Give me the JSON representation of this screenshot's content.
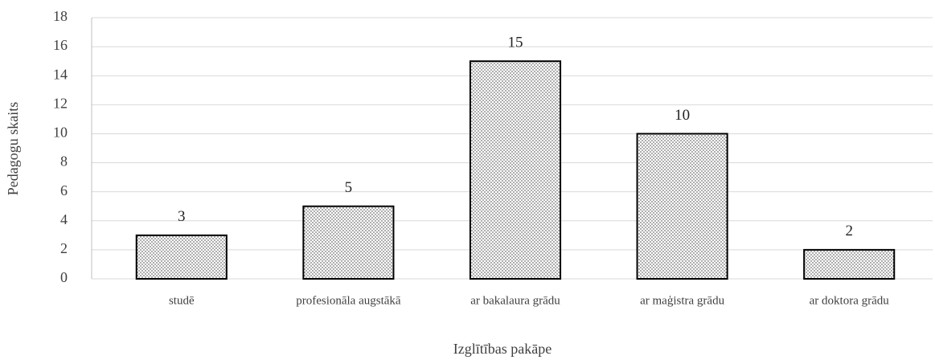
{
  "chart_data": {
    "type": "bar",
    "categories": [
      "studē",
      "profesionāla augstākā",
      "ar bakalaura grādu",
      "ar maģistra grādu",
      "ar doktora grādu"
    ],
    "values": [
      3,
      5,
      15,
      10,
      2
    ],
    "color": "#000000",
    "ylim": [
      0,
      18
    ],
    "yticks": [
      0,
      2,
      4,
      6,
      8,
      10,
      12,
      14,
      16,
      18
    ],
    "grid": true,
    "ylabel": "Pedagogu  skaits",
    "xlabel": "Izglītības pakāpe"
  }
}
